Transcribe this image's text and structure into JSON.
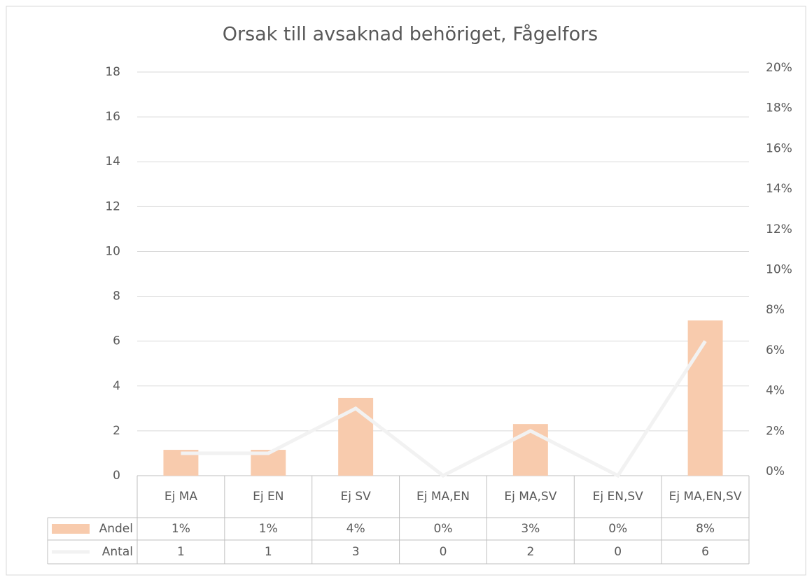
{
  "chart_data": {
    "type": "bar-line",
    "title": "Orsak till avsaknad behöriget, Fågelfors",
    "categories": [
      "Ej MA",
      "Ej EN",
      "Ej SV",
      "Ej MA,EN",
      "Ej MA,SV",
      "Ej EN,SV",
      "Ej MA,EN,SV"
    ],
    "series": [
      {
        "name": "Andel",
        "type": "bar",
        "axis": "y2",
        "color": "#f8cbad",
        "values": [
          1.28,
          1.28,
          3.85,
          0,
          2.56,
          0,
          7.69
        ],
        "value_labels": [
          "1%",
          "1%",
          "4%",
          "0%",
          "3%",
          "0%",
          "8%"
        ]
      },
      {
        "name": "Antal",
        "type": "line",
        "axis": "y",
        "color": "#f2f2f2",
        "values": [
          1,
          1,
          3,
          0,
          2,
          0,
          6
        ]
      }
    ],
    "ylim": [
      0,
      18
    ],
    "yticks": [
      0,
      2,
      4,
      6,
      8,
      10,
      12,
      14,
      16,
      18
    ],
    "y2lim": [
      0,
      20
    ],
    "y2ticks": [
      {
        "value": 0,
        "label": "0%"
      },
      {
        "value": 2,
        "label": "2%"
      },
      {
        "value": 4,
        "label": "4%"
      },
      {
        "value": 6,
        "label": "6%"
      },
      {
        "value": 8,
        "label": "8%"
      },
      {
        "value": 10,
        "label": "10%"
      },
      {
        "value": 12,
        "label": "12%"
      },
      {
        "value": 14,
        "label": "14%"
      },
      {
        "value": 16,
        "label": "16%"
      },
      {
        "value": 18,
        "label": "18%"
      },
      {
        "value": 20,
        "label": "20%"
      }
    ],
    "grid": true,
    "data_table": true
  }
}
